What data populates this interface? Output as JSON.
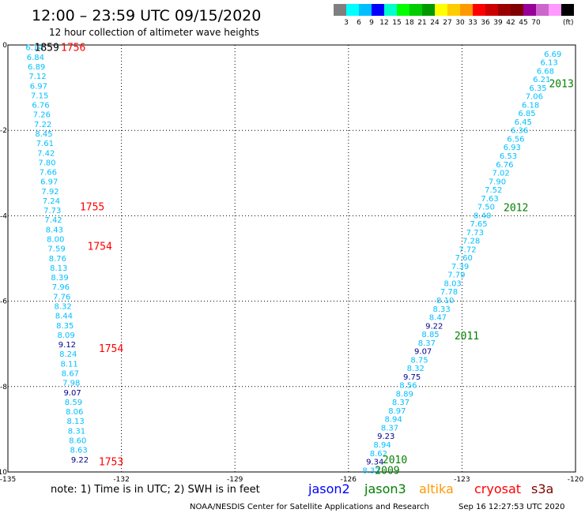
{
  "header": {
    "title": "12:00 – 23:59 UTC 09/15/2020",
    "subtitle": "12 hour collection of altimeter wave heights"
  },
  "colorbar": {
    "colors": [
      "#7f7f7f",
      "#00ffff",
      "#00bfff",
      "#0000ff",
      "#00ffcc",
      "#00ff00",
      "#00cc00",
      "#009900",
      "#ffff00",
      "#ffcc00",
      "#ff9900",
      "#ff0000",
      "#cc0000",
      "#990000",
      "#800000",
      "#990099",
      "#cc66cc",
      "#ff99ff",
      "#000000"
    ],
    "labels": [
      "3",
      "6",
      "9",
      "12",
      "15",
      "18",
      "21",
      "24",
      "27",
      "30",
      "33",
      "36",
      "39",
      "42",
      "45",
      "70",
      "(ft)"
    ]
  },
  "chart_data": {
    "type": "scatter",
    "xlim": [
      -135,
      -120
    ],
    "ylim": [
      -10,
      0
    ],
    "x_ticks": [
      -135,
      -132,
      -129,
      -126,
      -123,
      -120
    ],
    "y_ticks": [
      0,
      -2,
      -4,
      -6,
      -8,
      -10
    ],
    "x_tick_labels": [
      "-135",
      "-132",
      "-129",
      "-126",
      "-123",
      "-120"
    ],
    "y_tick_labels": [
      "0",
      "-2",
      "-4",
      "-6",
      "-8",
      "-10"
    ],
    "grid": true,
    "value_colors": {
      "cyan": "#00bfff",
      "blue": "#00008b"
    },
    "tracks": [
      {
        "name": "west",
        "x_start": -134.3,
        "x_end": -133.1,
        "values": [
          "6.14",
          "6.84",
          "6.89",
          "7.12",
          "6.97",
          "7.15",
          "6.76",
          "7.26",
          "7.22",
          "8.45",
          "7.61",
          "7.42",
          "7.80",
          "7.66",
          "6.97",
          "7.92",
          "7.24",
          "7.73",
          "7.42",
          "8.43",
          "8.00",
          "7.59",
          "8.76",
          "8.13",
          "8.39",
          "7.96",
          "7.76",
          "8.32",
          "8.44",
          "8.35",
          "8.09",
          "9.12",
          "8.24",
          "8.11",
          "8.67",
          "7.98",
          "9.07",
          "8.59",
          "8.06",
          "8.13",
          "8.31",
          "8.60",
          "8.63",
          "9.22"
        ],
        "blue_values": [
          "9.12",
          "9.07",
          "9.22"
        ],
        "y_start": -0.05,
        "y_end": -9.7
      },
      {
        "name": "east",
        "x_start": -120.6,
        "x_end": -125.4,
        "values": [
          "6.69",
          "6.13",
          "6.68",
          "6.21",
          "6.35",
          "7.06",
          "6.18",
          "6.85",
          "6.45",
          "6.36",
          "6.56",
          "6.93",
          "6.53",
          "6.76",
          "7.02",
          "7.90",
          "7.52",
          "7.63",
          "7.50",
          "8.40",
          "7.65",
          "7.73",
          "7.28",
          "7.72",
          "7.60",
          "7.39",
          "7.79",
          "8.03",
          "7.78",
          "8.10",
          "8.33",
          "8.47",
          "9.22",
          "8.85",
          "8.37",
          "9.07",
          "8.75",
          "8.32",
          "9.75",
          "8.56",
          "8.89",
          "8.37",
          "8.97",
          "8.94",
          "8.37",
          "9.23",
          "8.94",
          "8.62",
          "9.34",
          "8.32"
        ],
        "blue_values": [
          "9.22",
          "9.07",
          "9.75",
          "9.23",
          "9.34"
        ],
        "y_start": -0.2,
        "y_end": -9.95
      }
    ],
    "time_labels": [
      {
        "text": "1859",
        "x": -134.3,
        "y": -0.05,
        "color": "#000000"
      },
      {
        "text": "1756",
        "x": -133.6,
        "y": -0.05,
        "color": "#ff0000"
      },
      {
        "text": "1755",
        "x": -133.1,
        "y": -3.78,
        "color": "#ff0000"
      },
      {
        "text": "1754",
        "x": -132.9,
        "y": -4.7,
        "color": "#ff0000"
      },
      {
        "text": "1754",
        "x": -132.6,
        "y": -7.1,
        "color": "#ff0000"
      },
      {
        "text": "1753",
        "x": -132.6,
        "y": -9.75,
        "color": "#ff0000"
      },
      {
        "text": "2013",
        "x": -120.7,
        "y": -0.9,
        "color": "#008000"
      },
      {
        "text": "2012",
        "x": -121.9,
        "y": -3.8,
        "color": "#008000"
      },
      {
        "text": "2011",
        "x": -123.2,
        "y": -6.8,
        "color": "#008000"
      },
      {
        "text": "2010",
        "x": -125.1,
        "y": -9.7,
        "color": "#008000"
      },
      {
        "text": "2009",
        "x": -125.3,
        "y": -9.95,
        "color": "#008000"
      }
    ]
  },
  "note": "note: 1) Time is in UTC; 2) SWH is in feet",
  "legend": [
    {
      "name": "jason2",
      "color": "#0000ff"
    },
    {
      "name": "jason3",
      "color": "#008000"
    },
    {
      "name": "altika",
      "color": "#ff9900"
    },
    {
      "name": "cryosat",
      "color": "#ff0000"
    },
    {
      "name": "s3a",
      "color": "#800000"
    }
  ],
  "footer": {
    "org": "NOAA/NESDIS Center for Satellite Applications and Research",
    "timestamp": "Sep 16 12:27:53 UTC 2020"
  }
}
